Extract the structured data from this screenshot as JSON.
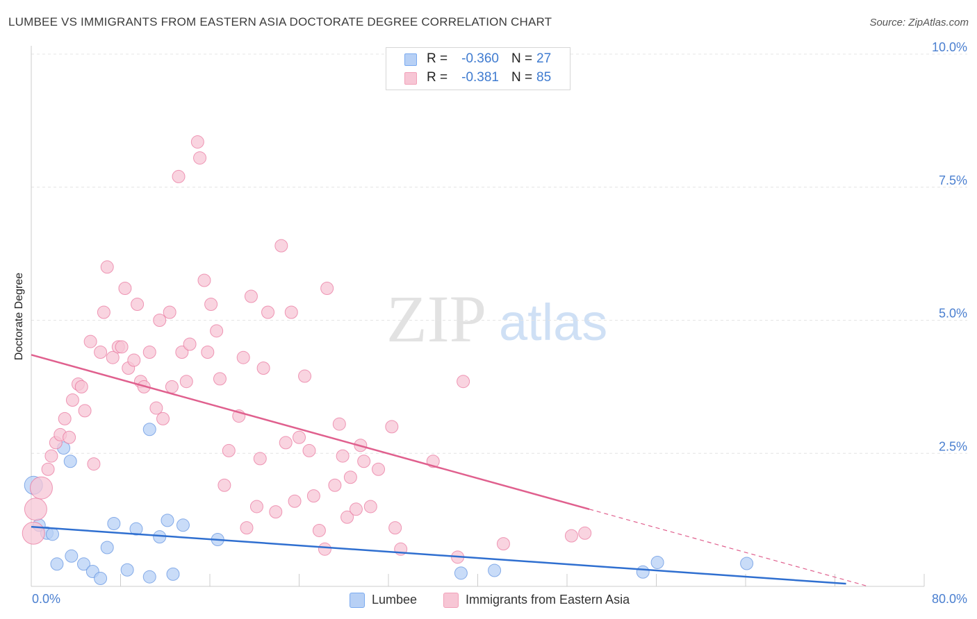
{
  "header": {
    "title": "LUMBEE VS IMMIGRANTS FROM EASTERN ASIA DOCTORATE DEGREE CORRELATION CHART",
    "source": "Source: ZipAtlas.com"
  },
  "watermark": {
    "zip": "ZIP",
    "atlas": "atlas"
  },
  "stats": [
    {
      "r_label": "R =",
      "r_value": "-0.360",
      "n_label": "N =",
      "n_value": "27",
      "color": "#7aaaf0"
    },
    {
      "r_label": "R =",
      "r_value": "-0.381",
      "n_label": "N =",
      "n_value": "85",
      "color": "#f2a0b8"
    }
  ],
  "legend": [
    {
      "label": "Lumbee",
      "color": "#7aaaf0"
    },
    {
      "label": "Immigrants from Eastern Asia",
      "color": "#f2a0b8"
    }
  ],
  "chart_data": {
    "type": "scatter",
    "ylabel": "Doctorate Degree",
    "xlim": [
      0,
      80
    ],
    "ylim": [
      0,
      10
    ],
    "x_tick_labels": [
      "0.0%",
      "80.0%"
    ],
    "y_ticks": [
      2.5,
      5.0,
      7.5,
      10.0
    ],
    "y_tick_labels": [
      "2.5%",
      "5.0%",
      "7.5%",
      "10.0%"
    ],
    "grid": true,
    "series": [
      {
        "name": "Lumbee",
        "color": "#5b8fe0",
        "fill": "#b7d0f5",
        "trend": {
          "x0": 0,
          "y0": 1.12,
          "x1": 73,
          "y1": 0.05,
          "dash_until": 73
        },
        "points": [
          [
            0.2,
            1.9
          ],
          [
            0.7,
            1.15
          ],
          [
            1.4,
            1.0
          ],
          [
            1.9,
            0.98
          ],
          [
            2.3,
            0.42
          ],
          [
            2.9,
            2.6
          ],
          [
            3.5,
            2.35
          ],
          [
            3.6,
            0.57
          ],
          [
            4.7,
            0.42
          ],
          [
            5.5,
            0.28
          ],
          [
            6.2,
            0.15
          ],
          [
            6.8,
            0.73
          ],
          [
            7.4,
            1.18
          ],
          [
            8.6,
            0.31
          ],
          [
            9.4,
            1.08
          ],
          [
            10.6,
            0.18
          ],
          [
            10.6,
            2.95
          ],
          [
            11.5,
            0.93
          ],
          [
            12.2,
            1.24
          ],
          [
            12.7,
            0.23
          ],
          [
            13.6,
            1.15
          ],
          [
            16.7,
            0.88
          ],
          [
            38.5,
            0.25
          ],
          [
            41.5,
            0.3
          ],
          [
            54.8,
            0.27
          ],
          [
            56.1,
            0.45
          ],
          [
            64.1,
            0.43
          ]
        ]
      },
      {
        "name": "Immigrants from Eastern Asia",
        "color": "#e8709a",
        "fill": "#f7c6d5",
        "trend": {
          "x0": 0,
          "y0": 4.35,
          "x1": 50,
          "y1": 1.45,
          "dash_end_x": 75,
          "dash_end_y": 0.0
        },
        "points": [
          [
            0.2,
            1.0
          ],
          [
            0.4,
            1.45
          ],
          [
            0.9,
            1.85
          ],
          [
            1.5,
            2.2
          ],
          [
            1.8,
            2.45
          ],
          [
            2.2,
            2.7
          ],
          [
            2.6,
            2.85
          ],
          [
            3.0,
            3.15
          ],
          [
            3.4,
            2.8
          ],
          [
            3.7,
            3.5
          ],
          [
            4.2,
            3.8
          ],
          [
            4.5,
            3.75
          ],
          [
            4.8,
            3.3
          ],
          [
            5.3,
            4.6
          ],
          [
            5.6,
            2.3
          ],
          [
            6.2,
            4.4
          ],
          [
            6.5,
            5.15
          ],
          [
            6.8,
            6.0
          ],
          [
            7.3,
            4.3
          ],
          [
            7.8,
            4.5
          ],
          [
            8.1,
            4.5
          ],
          [
            8.4,
            5.6
          ],
          [
            8.7,
            4.1
          ],
          [
            9.2,
            4.25
          ],
          [
            9.5,
            5.3
          ],
          [
            9.8,
            3.85
          ],
          [
            10.1,
            3.75
          ],
          [
            10.6,
            4.4
          ],
          [
            11.2,
            3.35
          ],
          [
            11.5,
            5.0
          ],
          [
            11.8,
            3.15
          ],
          [
            12.4,
            5.15
          ],
          [
            12.6,
            3.75
          ],
          [
            13.2,
            7.7
          ],
          [
            13.5,
            4.4
          ],
          [
            13.9,
            3.85
          ],
          [
            14.2,
            4.55
          ],
          [
            14.9,
            8.35
          ],
          [
            15.1,
            8.05
          ],
          [
            15.5,
            5.75
          ],
          [
            15.8,
            4.4
          ],
          [
            16.1,
            5.3
          ],
          [
            16.6,
            4.8
          ],
          [
            16.9,
            3.9
          ],
          [
            17.3,
            1.9
          ],
          [
            17.7,
            2.55
          ],
          [
            18.6,
            3.2
          ],
          [
            19.0,
            4.3
          ],
          [
            19.3,
            1.1
          ],
          [
            19.7,
            5.45
          ],
          [
            20.2,
            1.5
          ],
          [
            20.5,
            2.4
          ],
          [
            20.8,
            4.1
          ],
          [
            21.2,
            5.15
          ],
          [
            21.9,
            1.4
          ],
          [
            22.4,
            6.4
          ],
          [
            22.8,
            2.7
          ],
          [
            23.3,
            5.15
          ],
          [
            23.6,
            1.6
          ],
          [
            24.0,
            2.8
          ],
          [
            24.5,
            3.95
          ],
          [
            24.9,
            2.55
          ],
          [
            25.3,
            1.7
          ],
          [
            25.8,
            1.05
          ],
          [
            26.3,
            0.7
          ],
          [
            26.5,
            5.6
          ],
          [
            27.2,
            1.9
          ],
          [
            27.6,
            3.05
          ],
          [
            27.9,
            2.45
          ],
          [
            28.3,
            1.3
          ],
          [
            28.6,
            2.05
          ],
          [
            29.1,
            1.45
          ],
          [
            29.5,
            2.65
          ],
          [
            29.8,
            2.35
          ],
          [
            30.4,
            1.5
          ],
          [
            31.1,
            2.2
          ],
          [
            32.3,
            3.0
          ],
          [
            32.6,
            1.1
          ],
          [
            33.1,
            0.7
          ],
          [
            36.0,
            2.35
          ],
          [
            38.2,
            0.55
          ],
          [
            38.7,
            3.85
          ],
          [
            42.3,
            0.8
          ],
          [
            48.4,
            0.95
          ],
          [
            49.6,
            1.0
          ]
        ]
      }
    ]
  }
}
